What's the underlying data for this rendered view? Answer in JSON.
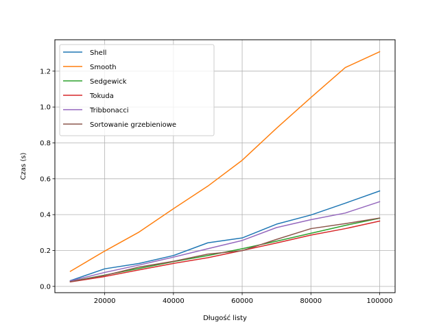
{
  "chart_data": {
    "type": "line",
    "title": "",
    "xlabel": "Długość listy",
    "ylabel": "Czas (s)",
    "xlim": [
      5500,
      104500
    ],
    "ylim": [
      -0.035,
      1.375
    ],
    "x_ticks": [
      20000,
      40000,
      60000,
      80000,
      100000
    ],
    "x_tick_labels": [
      "20000",
      "40000",
      "60000",
      "80000",
      "100000"
    ],
    "y_ticks": [
      0.0,
      0.2,
      0.4,
      0.6,
      0.8,
      1.0,
      1.2
    ],
    "y_tick_labels": [
      "0.0",
      "0.2",
      "0.4",
      "0.6",
      "0.8",
      "1.0",
      "1.2"
    ],
    "grid": true,
    "legend_position": "top-left",
    "x": [
      10000,
      20000,
      30000,
      40000,
      50000,
      60000,
      70000,
      80000,
      90000,
      100000
    ],
    "series": [
      {
        "name": "Shell",
        "color": "#1f77b4",
        "values": [
          0.032,
          0.098,
          0.128,
          0.172,
          0.243,
          0.27,
          0.347,
          0.398,
          0.464,
          0.532
        ]
      },
      {
        "name": "Smooth",
        "color": "#ff7f0e",
        "values": [
          0.084,
          0.197,
          0.303,
          0.433,
          0.559,
          0.703,
          0.882,
          1.053,
          1.22,
          1.308
        ]
      },
      {
        "name": "Sedgewick",
        "color": "#2ca02c",
        "values": [
          0.027,
          0.063,
          0.1,
          0.138,
          0.172,
          0.21,
          0.252,
          0.296,
          0.34,
          0.38
        ]
      },
      {
        "name": "Tokuda",
        "color": "#d62728",
        "values": [
          0.025,
          0.055,
          0.092,
          0.128,
          0.16,
          0.2,
          0.242,
          0.286,
          0.322,
          0.364
        ]
      },
      {
        "name": "Tribbonacci",
        "color": "#9467bd",
        "values": [
          0.03,
          0.078,
          0.119,
          0.163,
          0.21,
          0.256,
          0.328,
          0.372,
          0.409,
          0.472
        ]
      },
      {
        "name": "Sortowanie grzebieniowe",
        "color": "#8c564b",
        "values": [
          0.026,
          0.061,
          0.108,
          0.14,
          0.18,
          0.199,
          0.262,
          0.322,
          0.35,
          0.381
        ]
      }
    ]
  }
}
